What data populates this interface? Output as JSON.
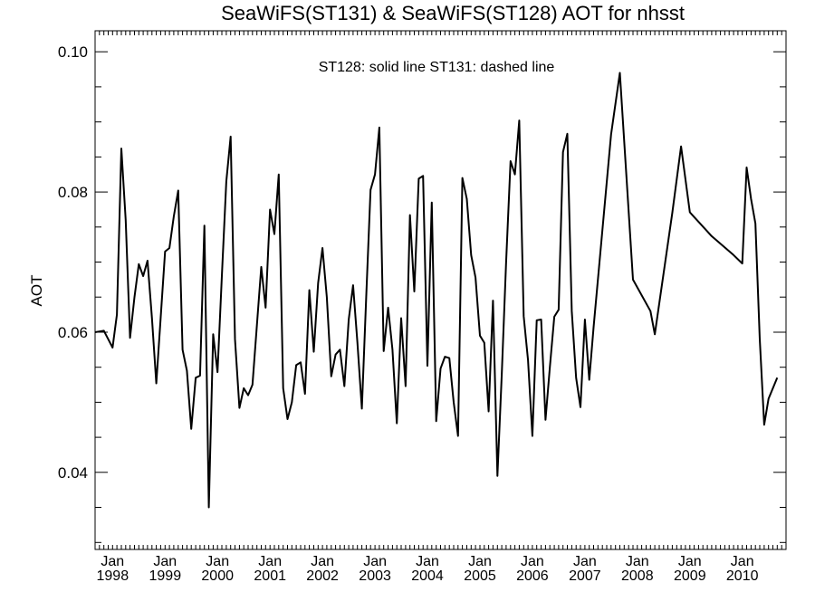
{
  "chart_data": {
    "type": "line",
    "title": "SeaWiFS(ST131) & SeaWiFS(ST128)  AOT for nhsst",
    "annotation": "ST128: solid line   ST131: dashed line",
    "ylabel": "AOT",
    "xlabel": "",
    "ylim": [
      0.029,
      0.103
    ],
    "xlim": [
      "1997-09",
      "2010-11"
    ],
    "y_ticks": [
      0.04,
      0.06,
      0.08,
      0.1
    ],
    "y_tick_labels": [
      "0.04",
      "0.06",
      "0.08",
      "0.10"
    ],
    "x_ticks": [
      {
        "month": "Jan",
        "year": "1998",
        "date": "1998-01"
      },
      {
        "month": "Jan",
        "year": "1999",
        "date": "1999-01"
      },
      {
        "month": "Jan",
        "year": "2000",
        "date": "2000-01"
      },
      {
        "month": "Jan",
        "year": "2001",
        "date": "2001-01"
      },
      {
        "month": "Jan",
        "year": "2002",
        "date": "2002-01"
      },
      {
        "month": "Jan",
        "year": "2003",
        "date": "2003-01"
      },
      {
        "month": "Jan",
        "year": "2004",
        "date": "2004-01"
      },
      {
        "month": "Jan",
        "year": "2005",
        "date": "2005-01"
      },
      {
        "month": "Jan",
        "year": "2006",
        "date": "2006-01"
      },
      {
        "month": "Jan",
        "year": "2007",
        "date": "2007-01"
      },
      {
        "month": "Jan",
        "year": "2008",
        "date": "2008-01"
      },
      {
        "month": "Jan",
        "year": "2009",
        "date": "2009-01"
      },
      {
        "month": "Jan",
        "year": "2010",
        "date": "2010-01"
      }
    ],
    "grid": false,
    "series": [
      {
        "name": "ST128",
        "style": "solid",
        "color": "#000000",
        "points": [
          [
            "1997-09",
            0.06
          ],
          [
            "1997-10",
            0.0601
          ],
          [
            "1997-11",
            0.0602
          ],
          [
            "1997-12",
            0.059
          ],
          [
            "1998-01",
            0.0578
          ],
          [
            "1998-02",
            0.0625
          ],
          [
            "1998-03",
            0.0862
          ],
          [
            "1998-04",
            0.076
          ],
          [
            "1998-05",
            0.0592
          ],
          [
            "1998-06",
            0.065
          ],
          [
            "1998-07",
            0.0697
          ],
          [
            "1998-08",
            0.068
          ],
          [
            "1998-09",
            0.0702
          ],
          [
            "1998-10",
            0.062
          ],
          [
            "1998-11",
            0.0527
          ],
          [
            "1998-12",
            0.062
          ],
          [
            "1999-01",
            0.0715
          ],
          [
            "1999-02",
            0.072
          ],
          [
            "1999-03",
            0.0765
          ],
          [
            "1999-04",
            0.0802
          ],
          [
            "1999-05",
            0.0575
          ],
          [
            "1999-06",
            0.0545
          ],
          [
            "1999-07",
            0.0462
          ],
          [
            "1999-08",
            0.0535
          ],
          [
            "1999-09",
            0.0538
          ],
          [
            "1999-10",
            0.0752
          ],
          [
            "1999-11",
            0.035
          ],
          [
            "1999-12",
            0.0597
          ],
          [
            "2000-01",
            0.0543
          ],
          [
            "2000-02",
            0.068
          ],
          [
            "2000-03",
            0.0815
          ],
          [
            "2000-04",
            0.0879
          ],
          [
            "2000-05",
            0.059
          ],
          [
            "2000-06",
            0.0492
          ],
          [
            "2000-07",
            0.052
          ],
          [
            "2000-08",
            0.051
          ],
          [
            "2000-09",
            0.0525
          ],
          [
            "2000-10",
            0.061
          ],
          [
            "2000-11",
            0.0693
          ],
          [
            "2000-12",
            0.0635
          ],
          [
            "2001-01",
            0.0775
          ],
          [
            "2001-02",
            0.074
          ],
          [
            "2001-03",
            0.0825
          ],
          [
            "2001-04",
            0.052
          ],
          [
            "2001-05",
            0.0476
          ],
          [
            "2001-06",
            0.05
          ],
          [
            "2001-07",
            0.0553
          ],
          [
            "2001-08",
            0.0557
          ],
          [
            "2001-09",
            0.0512
          ],
          [
            "2001-10",
            0.066
          ],
          [
            "2001-11",
            0.0572
          ],
          [
            "2001-12",
            0.067
          ],
          [
            "2002-01",
            0.072
          ],
          [
            "2002-02",
            0.065
          ],
          [
            "2002-03",
            0.0537
          ],
          [
            "2002-04",
            0.0568
          ],
          [
            "2002-05",
            0.0575
          ],
          [
            "2002-06",
            0.0523
          ],
          [
            "2002-07",
            0.0618
          ],
          [
            "2002-08",
            0.0667
          ],
          [
            "2002-09",
            0.0585
          ],
          [
            "2002-10",
            0.0491
          ],
          [
            "2002-11",
            0.065
          ],
          [
            "2002-12",
            0.0803
          ],
          [
            "2003-01",
            0.0825
          ],
          [
            "2003-02",
            0.0892
          ],
          [
            "2003-03",
            0.0573
          ],
          [
            "2003-04",
            0.0635
          ],
          [
            "2003-05",
            0.0575
          ],
          [
            "2003-06",
            0.047
          ],
          [
            "2003-07",
            0.062
          ],
          [
            "2003-08",
            0.0523
          ],
          [
            "2003-09",
            0.0767
          ],
          [
            "2003-10",
            0.0658
          ],
          [
            "2003-11",
            0.0819
          ],
          [
            "2003-12",
            0.0823
          ],
          [
            "2004-01",
            0.0552
          ],
          [
            "2004-02",
            0.0785
          ],
          [
            "2004-03",
            0.0473
          ],
          [
            "2004-04",
            0.0548
          ],
          [
            "2004-05",
            0.0565
          ],
          [
            "2004-06",
            0.0563
          ],
          [
            "2004-07",
            0.05
          ],
          [
            "2004-08",
            0.0452
          ],
          [
            "2004-09",
            0.082
          ],
          [
            "2004-10",
            0.079
          ],
          [
            "2004-11",
            0.071
          ],
          [
            "2004-12",
            0.0678
          ],
          [
            "2005-01",
            0.0595
          ],
          [
            "2005-02",
            0.0585
          ],
          [
            "2005-03",
            0.0487
          ],
          [
            "2005-04",
            0.0645
          ],
          [
            "2005-05",
            0.0395
          ],
          [
            "2005-06",
            0.054
          ],
          [
            "2005-07",
            0.07
          ],
          [
            "2005-08",
            0.0844
          ],
          [
            "2005-09",
            0.0825
          ],
          [
            "2005-10",
            0.0902
          ],
          [
            "2005-11",
            0.0623
          ],
          [
            "2005-12",
            0.056
          ],
          [
            "2006-01",
            0.0452
          ],
          [
            "2006-02",
            0.0617
          ],
          [
            "2006-03",
            0.0618
          ],
          [
            "2006-04",
            0.0475
          ],
          [
            "2006-05",
            0.055
          ],
          [
            "2006-06",
            0.0622
          ],
          [
            "2006-07",
            0.0632
          ],
          [
            "2006-08",
            0.0857
          ],
          [
            "2006-09",
            0.0883
          ],
          [
            "2006-10",
            0.063
          ],
          [
            "2006-11",
            0.0535
          ],
          [
            "2006-12",
            0.0493
          ],
          [
            "2007-01",
            0.0618
          ],
          [
            "2007-02",
            0.0532
          ],
          [
            "2007-03",
            0.0607
          ],
          [
            "2007-07",
            0.0882
          ],
          [
            "2007-09",
            0.097
          ],
          [
            "2007-12",
            0.0675
          ],
          [
            "2008-04",
            0.063
          ],
          [
            "2008-05",
            0.0597
          ],
          [
            "2008-09",
            0.077
          ],
          [
            "2008-11",
            0.0865
          ],
          [
            "2009-01",
            0.0771
          ],
          [
            "2009-06",
            0.0737
          ],
          [
            "2009-11",
            0.071
          ],
          [
            "2010-01",
            0.0698
          ],
          [
            "2010-02",
            0.0835
          ],
          [
            "2010-03",
            0.079
          ],
          [
            "2010-04",
            0.0755
          ],
          [
            "2010-05",
            0.059
          ],
          [
            "2010-06",
            0.0468
          ],
          [
            "2010-07",
            0.0505
          ],
          [
            "2010-08",
            0.052
          ],
          [
            "2010-09",
            0.0535
          ]
        ]
      }
    ]
  }
}
